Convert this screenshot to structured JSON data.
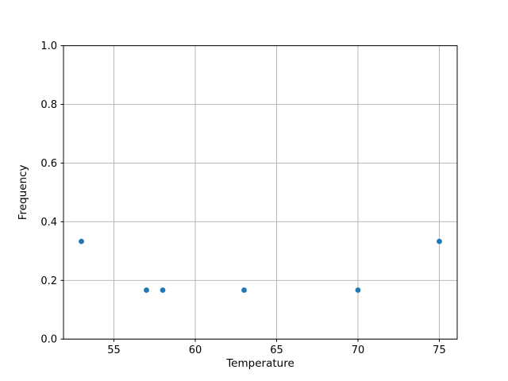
{
  "chart_data": {
    "type": "scatter",
    "title": "",
    "xlabel": "Temperature",
    "ylabel": "Frequency",
    "xlim": [
      51.9,
      76.1
    ],
    "ylim": [
      0.0,
      1.0
    ],
    "grid": true,
    "legend": "none",
    "marker_color": "#1f77b4",
    "grid_color": "#b0b0b0",
    "spine_color": "#000000",
    "marker_radius_px": 3.4,
    "xticks": [
      {
        "value": 55,
        "label": "55"
      },
      {
        "value": 60,
        "label": "60"
      },
      {
        "value": 65,
        "label": "65"
      },
      {
        "value": 70,
        "label": "70"
      },
      {
        "value": 75,
        "label": "75"
      }
    ],
    "yticks": [
      {
        "value": 0.0,
        "label": "0.0"
      },
      {
        "value": 0.2,
        "label": "0.2"
      },
      {
        "value": 0.4,
        "label": "0.4"
      },
      {
        "value": 0.6,
        "label": "0.6"
      },
      {
        "value": 0.8,
        "label": "0.8"
      },
      {
        "value": 1.0,
        "label": "1.0"
      }
    ],
    "points": [
      {
        "x": 53,
        "y": 0.333
      },
      {
        "x": 57,
        "y": 0.167
      },
      {
        "x": 58,
        "y": 0.167
      },
      {
        "x": 63,
        "y": 0.167
      },
      {
        "x": 70,
        "y": 0.167
      },
      {
        "x": 75,
        "y": 0.333
      }
    ]
  }
}
